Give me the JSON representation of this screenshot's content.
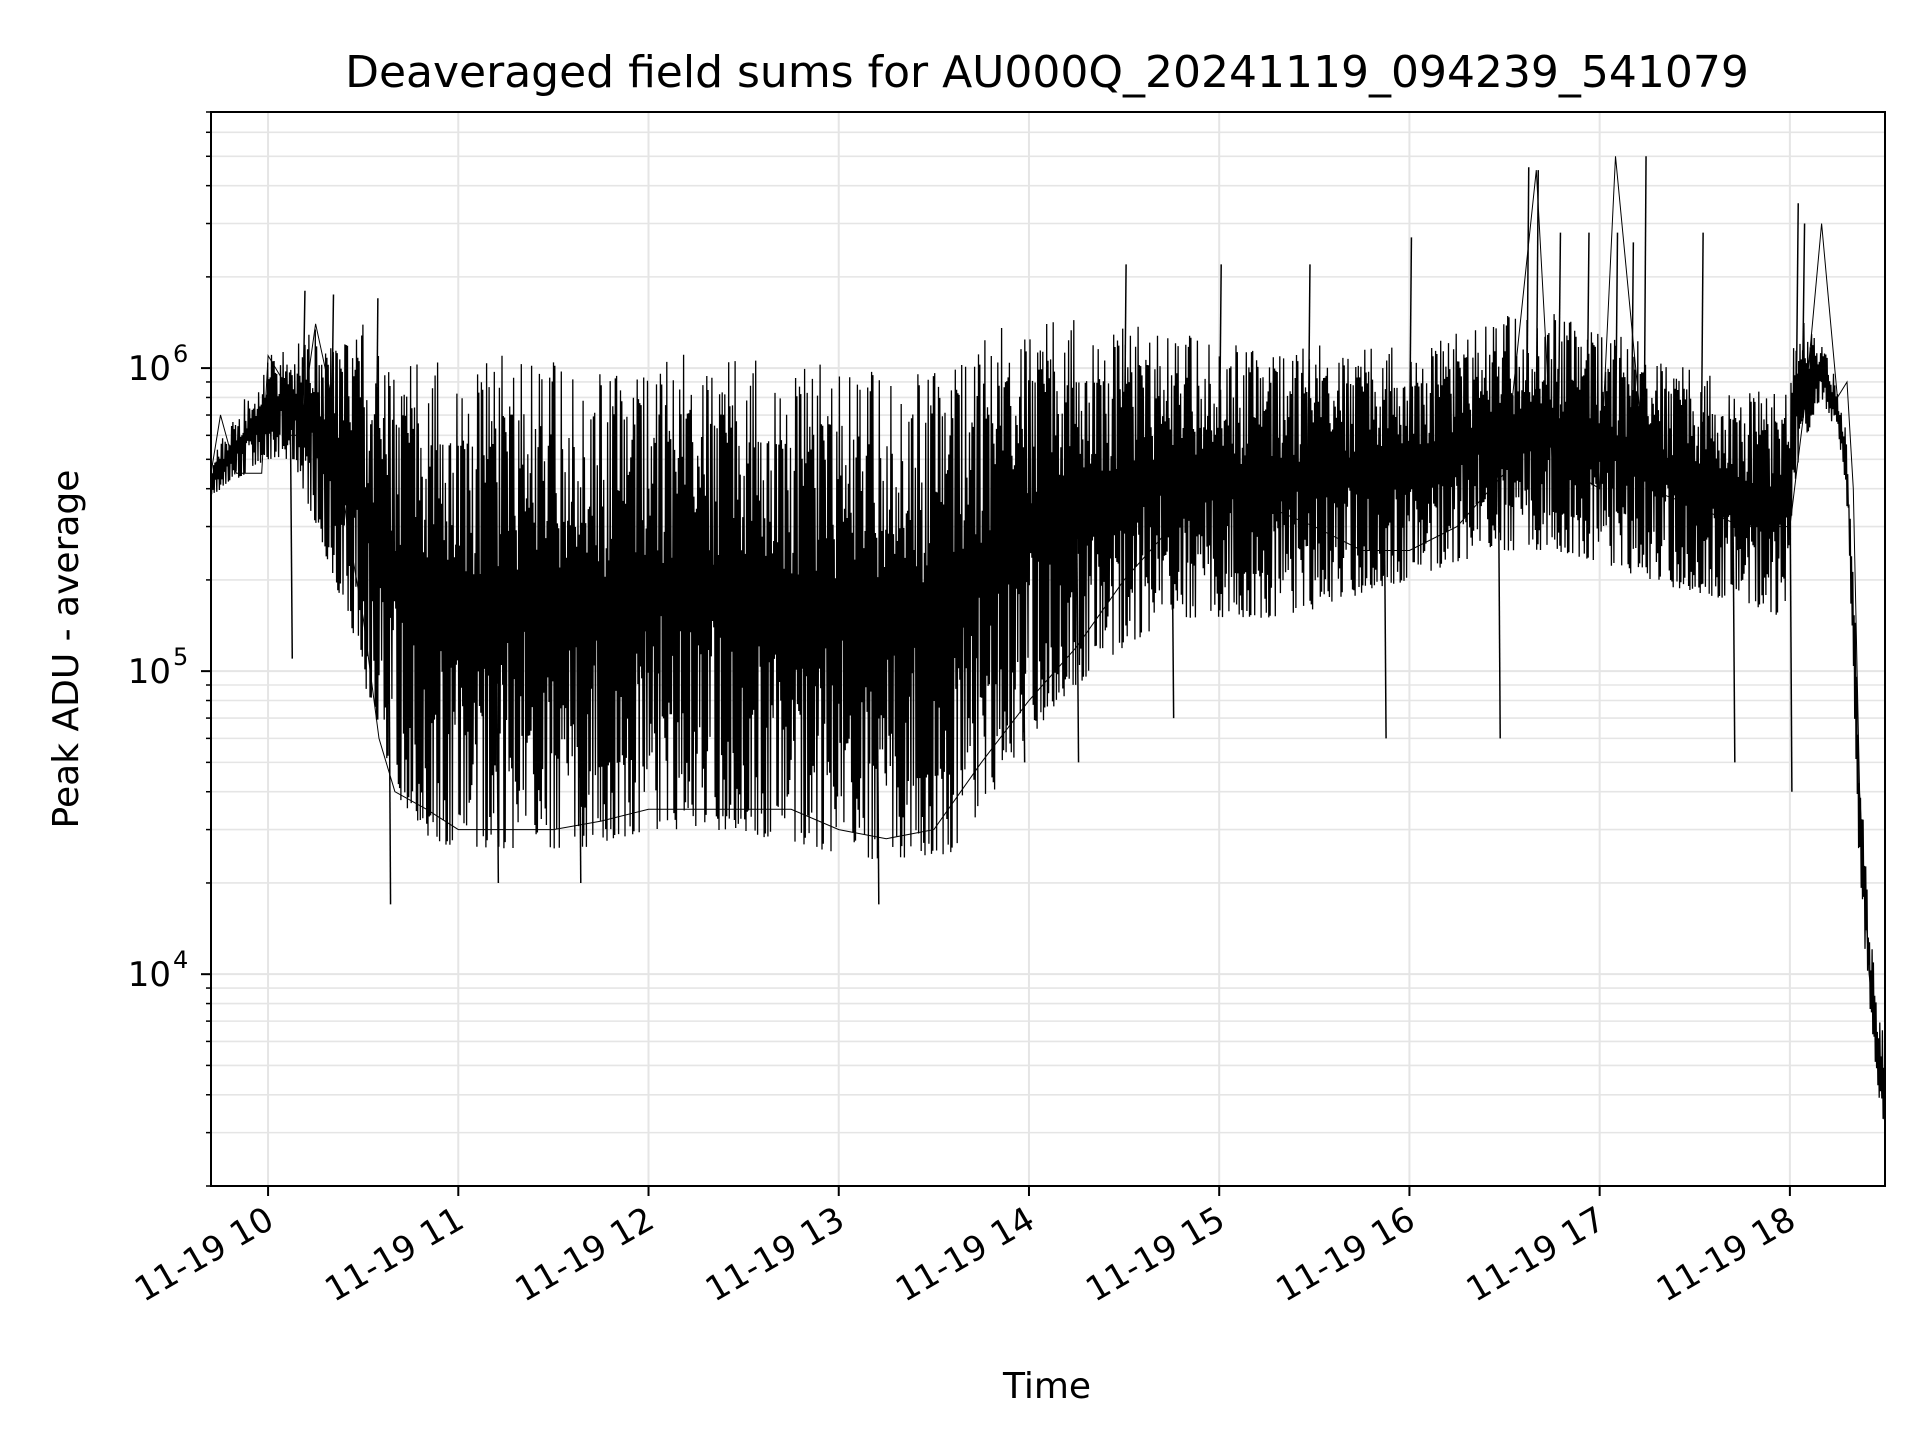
{
  "chart_data": {
    "type": "line",
    "title": "Deaveraged field sums for AU000Q_20241119_094239_541079",
    "xlabel": "Time",
    "ylabel": "Peak ADU - average",
    "yscale": "log",
    "ylim": [
      2000,
      7000000
    ],
    "xlim": [
      "2024-11-19 09:42",
      "2024-11-19 18:30"
    ],
    "grid": true,
    "line_color": "#000000",
    "grid_color": "#e5e5e5",
    "x_ticks": [
      {
        "value": "2024-11-19 10:00",
        "label": "11-19 10"
      },
      {
        "value": "2024-11-19 11:00",
        "label": "11-19 11"
      },
      {
        "value": "2024-11-19 12:00",
        "label": "11-19 12"
      },
      {
        "value": "2024-11-19 13:00",
        "label": "11-19 13"
      },
      {
        "value": "2024-11-19 14:00",
        "label": "11-19 14"
      },
      {
        "value": "2024-11-19 15:00",
        "label": "11-19 15"
      },
      {
        "value": "2024-11-19 16:00",
        "label": "11-19 16"
      },
      {
        "value": "2024-11-19 17:00",
        "label": "11-19 17"
      },
      {
        "value": "2024-11-19 18:00",
        "label": "11-19 18"
      }
    ],
    "y_ticks": [
      {
        "value": 10000,
        "base": "10",
        "exp": "4"
      },
      {
        "value": 100000,
        "base": "10",
        "exp": "5"
      },
      {
        "value": 1000000,
        "base": "10",
        "exp": "6"
      }
    ],
    "series": [
      {
        "x": [
          "2024-11-19 09:42",
          "2024-11-19 09:45",
          "2024-11-19 09:50",
          "2024-11-19 09:55",
          "2024-11-19 09:58",
          "2024-11-19 10:00",
          "2024-11-19 10:05",
          "2024-11-19 10:07",
          "2024-11-19 10:10",
          "2024-11-19 10:15",
          "2024-11-19 10:20",
          "2024-11-19 10:25",
          "2024-11-19 10:30",
          "2024-11-19 10:35",
          "2024-11-19 10:40",
          "2024-11-19 10:50",
          "2024-11-19 11:00",
          "2024-11-19 11:15",
          "2024-11-19 11:30",
          "2024-11-19 11:45",
          "2024-11-19 12:00",
          "2024-11-19 12:15",
          "2024-11-19 12:30",
          "2024-11-19 12:45",
          "2024-11-19 13:00",
          "2024-11-19 13:15",
          "2024-11-19 13:30",
          "2024-11-19 13:45",
          "2024-11-19 14:00",
          "2024-11-19 14:15",
          "2024-11-19 14:30",
          "2024-11-19 14:45",
          "2024-11-19 15:00",
          "2024-11-19 15:15",
          "2024-11-19 15:30",
          "2024-11-19 15:45",
          "2024-11-19 16:00",
          "2024-11-19 16:15",
          "2024-11-19 16:30",
          "2024-11-19 16:40",
          "2024-11-19 16:45",
          "2024-11-19 17:00",
          "2024-11-19 17:05",
          "2024-11-19 17:15",
          "2024-11-19 17:30",
          "2024-11-19 17:45",
          "2024-11-19 18:00",
          "2024-11-19 18:05",
          "2024-11-19 18:10",
          "2024-11-19 18:15",
          "2024-11-19 18:18",
          "2024-11-19 18:20",
          "2024-11-19 18:22",
          "2024-11-19 18:25",
          "2024-11-19 18:28",
          "2024-11-19 18:30"
        ],
        "values": [
          450000,
          700000,
          450000,
          450000,
          450000,
          1100000,
          900000,
          600000,
          600000,
          1400000,
          800000,
          300000,
          150000,
          60000,
          40000,
          35000,
          30000,
          30000,
          30000,
          32000,
          35000,
          35000,
          35000,
          35000,
          30000,
          28000,
          30000,
          50000,
          80000,
          120000,
          200000,
          300000,
          400000,
          350000,
          300000,
          250000,
          250000,
          300000,
          450000,
          4500000,
          500000,
          400000,
          5000000,
          400000,
          350000,
          300000,
          300000,
          800000,
          3000000,
          800000,
          900000,
          400000,
          40000,
          10000,
          5000,
          4000
        ]
      }
    ],
    "envelope_bottom": {
      "x": [
        "2024-11-19 09:42",
        "2024-11-19 10:00",
        "2024-11-19 10:08",
        "2024-11-19 10:15",
        "2024-11-19 10:25",
        "2024-11-19 10:35",
        "2024-11-19 10:40",
        "2024-11-19 10:50",
        "2024-11-19 11:00",
        "2024-11-19 11:20",
        "2024-11-19 11:40",
        "2024-11-19 12:00",
        "2024-11-19 12:20",
        "2024-11-19 12:40",
        "2024-11-19 13:00",
        "2024-11-19 13:10",
        "2024-11-19 13:20",
        "2024-11-19 13:35",
        "2024-11-19 13:45",
        "2024-11-19 14:00",
        "2024-11-19 14:15",
        "2024-11-19 14:30",
        "2024-11-19 14:45",
        "2024-11-19 15:00",
        "2024-11-19 15:15",
        "2024-11-19 15:30",
        "2024-11-19 15:45",
        "2024-11-19 16:00",
        "2024-11-19 16:15",
        "2024-11-19 16:30",
        "2024-11-19 16:45",
        "2024-11-19 17:00",
        "2024-11-19 17:15",
        "2024-11-19 17:30",
        "2024-11-19 17:45",
        "2024-11-19 17:58",
        "2024-11-19 18:03",
        "2024-11-19 18:10",
        "2024-11-19 18:15",
        "2024-11-19 18:18",
        "2024-11-19 18:20",
        "2024-11-19 18:22",
        "2024-11-19 18:25",
        "2024-11-19 18:28",
        "2024-11-19 18:30"
      ],
      "values": [
        380000,
        500000,
        500000,
        300000,
        150000,
        60000,
        40000,
        28000,
        26000,
        26000,
        26000,
        30000,
        30000,
        28000,
        25000,
        24000,
        24000,
        25000,
        35000,
        60000,
        90000,
        120000,
        150000,
        150000,
        150000,
        160000,
        180000,
        200000,
        230000,
        250000,
        250000,
        230000,
        200000,
        180000,
        170000,
        150000,
        500000,
        800000,
        600000,
        350000,
        100000,
        20000,
        8000,
        4000,
        3000
      ]
    },
    "envelope_top": {
      "x": [
        "2024-11-19 09:42",
        "2024-11-19 10:00",
        "2024-11-19 10:08",
        "2024-11-19 10:20",
        "2024-11-19 10:30",
        "2024-11-19 10:40",
        "2024-11-19 11:00",
        "2024-11-19 11:20",
        "2024-11-19 11:40",
        "2024-11-19 12:00",
        "2024-11-19 12:20",
        "2024-11-19 12:40",
        "2024-11-19 13:00",
        "2024-11-19 13:15",
        "2024-11-19 13:30",
        "2024-11-19 13:45",
        "2024-11-19 14:00",
        "2024-11-19 14:15",
        "2024-11-19 14:30",
        "2024-11-19 14:45",
        "2024-11-19 15:00",
        "2024-11-19 15:15",
        "2024-11-19 15:30",
        "2024-11-19 15:45",
        "2024-11-19 16:00",
        "2024-11-19 16:15",
        "2024-11-19 16:30",
        "2024-11-19 16:45",
        "2024-11-19 17:00",
        "2024-11-19 17:15",
        "2024-11-19 17:30",
        "2024-11-19 17:45",
        "2024-11-19 17:58",
        "2024-11-19 18:03",
        "2024-11-19 18:10",
        "2024-11-19 18:15",
        "2024-11-19 18:18",
        "2024-11-19 18:20",
        "2024-11-19 18:22",
        "2024-11-19 18:25",
        "2024-11-19 18:28",
        "2024-11-19 18:30"
      ],
      "values": [
        500000,
        1100000,
        1200000,
        1500000,
        1400000,
        1100000,
        1100000,
        1100000,
        1050000,
        1100000,
        1150000,
        1100000,
        1000000,
        1000000,
        1100000,
        1300000,
        1500000,
        1500000,
        1400000,
        1300000,
        1300000,
        1200000,
        1200000,
        1200000,
        1200000,
        1300000,
        1500000,
        1600000,
        1400000,
        1200000,
        1000000,
        900000,
        800000,
        1500000,
        1200000,
        900000,
        600000,
        250000,
        60000,
        15000,
        8000,
        6000
      ]
    },
    "spikes": [
      {
        "x": "2024-11-19 10:11",
        "value": 1800000
      },
      {
        "x": "2024-11-19 10:20",
        "value": 1750000
      },
      {
        "x": "2024-11-19 10:34",
        "value": 1700000
      },
      {
        "x": "2024-11-19 10:38",
        "value": 17000
      },
      {
        "x": "2024-11-19 10:07",
        "value": 110000
      },
      {
        "x": "2024-11-19 11:12",
        "value": 20000
      },
      {
        "x": "2024-11-19 11:38",
        "value": 20000
      },
      {
        "x": "2024-11-19 13:12",
        "value": 17000
      },
      {
        "x": "2024-11-19 14:30",
        "value": 2200000
      },
      {
        "x": "2024-11-19 15:00",
        "value": 2200000
      },
      {
        "x": "2024-11-19 15:28",
        "value": 2200000
      },
      {
        "x": "2024-11-19 16:00",
        "value": 2700000
      },
      {
        "x": "2024-11-19 16:37",
        "value": 4600000
      },
      {
        "x": "2024-11-19 16:40",
        "value": 4500000
      },
      {
        "x": "2024-11-19 16:47",
        "value": 2800000
      },
      {
        "x": "2024-11-19 16:56",
        "value": 2800000
      },
      {
        "x": "2024-11-19 17:05",
        "value": 2800000
      },
      {
        "x": "2024-11-19 17:10",
        "value": 2600000
      },
      {
        "x": "2024-11-19 17:14",
        "value": 5000000
      },
      {
        "x": "2024-11-19 17:32",
        "value": 2800000
      },
      {
        "x": "2024-11-19 18:02",
        "value": 3500000
      },
      {
        "x": "2024-11-19 18:04",
        "value": 3000000
      },
      {
        "x": "2024-11-19 15:52",
        "value": 60000
      },
      {
        "x": "2024-11-19 16:28",
        "value": 60000
      },
      {
        "x": "2024-11-19 17:42",
        "value": 50000
      },
      {
        "x": "2024-11-19 18:00",
        "value": 40000
      },
      {
        "x": "2024-11-19 14:45",
        "value": 70000
      },
      {
        "x": "2024-11-19 13:58",
        "value": 50000
      },
      {
        "x": "2024-11-19 14:15",
        "value": 50000
      }
    ]
  }
}
